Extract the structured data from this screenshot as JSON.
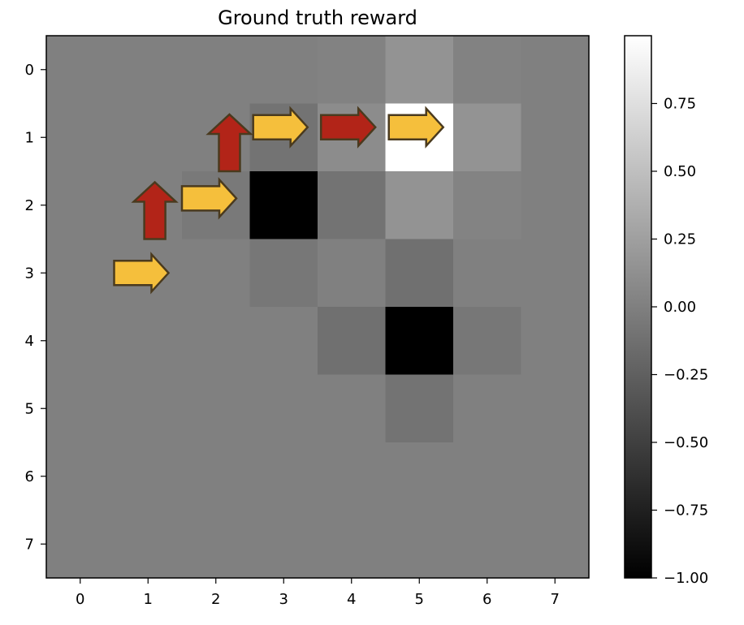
{
  "chart_data": {
    "type": "heatmap",
    "title": "Ground truth reward",
    "xlabel": "",
    "ylabel": "",
    "x_ticks": [
      0,
      1,
      2,
      3,
      4,
      5,
      6,
      7
    ],
    "y_ticks": [
      0,
      1,
      2,
      3,
      4,
      5,
      6,
      7
    ],
    "value_range": [
      -1.0,
      1.0
    ],
    "colormap": "gray",
    "grid": false,
    "colorbar": {
      "position": "right",
      "ticks": [
        0.75,
        0.5,
        0.25,
        0.0,
        -0.25,
        -0.5,
        -0.75,
        -1.0
      ],
      "tick_labels": [
        "0.75",
        "0.50",
        "0.25",
        "0.00",
        "−0.25",
        "−0.50",
        "−0.75",
        "−1.00"
      ]
    },
    "values": [
      [
        0.0,
        0.0,
        0.0,
        0.0,
        0.02,
        0.15,
        0.02,
        0.0
      ],
      [
        0.0,
        0.0,
        0.0,
        -0.1,
        0.1,
        1.0,
        0.15,
        0.0
      ],
      [
        0.0,
        0.0,
        -0.05,
        -1.0,
        -0.1,
        0.15,
        0.03,
        0.0
      ],
      [
        0.0,
        0.0,
        0.0,
        -0.07,
        0.0,
        -0.12,
        0.0,
        0.0
      ],
      [
        0.0,
        0.0,
        0.0,
        0.0,
        -0.12,
        -1.0,
        -0.07,
        0.0
      ],
      [
        0.0,
        0.0,
        0.0,
        0.0,
        0.0,
        -0.1,
        0.0,
        0.0
      ],
      [
        0.0,
        0.0,
        0.0,
        0.0,
        0.0,
        0.0,
        0.0,
        0.0
      ],
      [
        0.0,
        0.0,
        0.0,
        0.0,
        0.0,
        0.0,
        0.0,
        0.0
      ]
    ],
    "arrows": [
      {
        "x": 0.5,
        "y": 3.0,
        "direction": "right",
        "color": "#f5bf3c"
      },
      {
        "x": 1.1,
        "y": 2.5,
        "direction": "up",
        "color": "#b22418"
      },
      {
        "x": 1.5,
        "y": 1.9,
        "direction": "right",
        "color": "#f5bf3c"
      },
      {
        "x": 2.2,
        "y": 1.5,
        "direction": "up",
        "color": "#b22418"
      },
      {
        "x": 2.55,
        "y": 0.85,
        "direction": "right",
        "color": "#f5bf3c"
      },
      {
        "x": 3.55,
        "y": 0.85,
        "direction": "right",
        "color": "#b22418"
      },
      {
        "x": 4.55,
        "y": 0.85,
        "direction": "right",
        "color": "#f5bf3c"
      }
    ],
    "arrow_outline_color": "#4a3a1e"
  }
}
